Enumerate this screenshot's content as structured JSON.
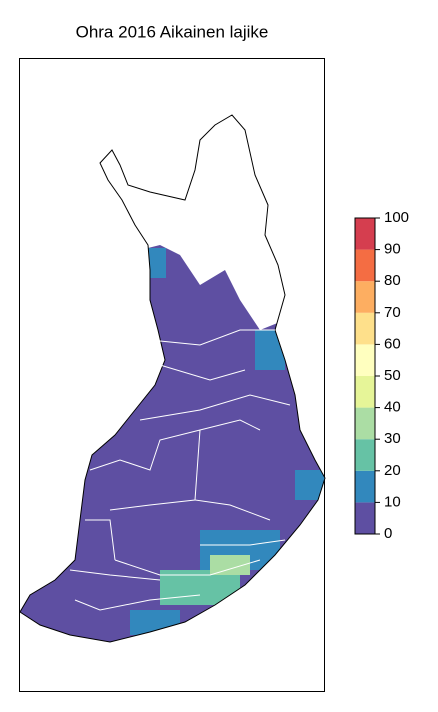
{
  "title": "Ohra 2016 Aikainen lajike",
  "legend": {
    "ticks": [
      0,
      10,
      20,
      30,
      40,
      50,
      60,
      70,
      80,
      90,
      100
    ],
    "colors": [
      "#5e4fa2",
      "#3288bd",
      "#66c2a5",
      "#abdda4",
      "#e6f598",
      "#ffffbf",
      "#fee08b",
      "#fdae61",
      "#f46d43",
      "#d53e4f"
    ]
  }
}
